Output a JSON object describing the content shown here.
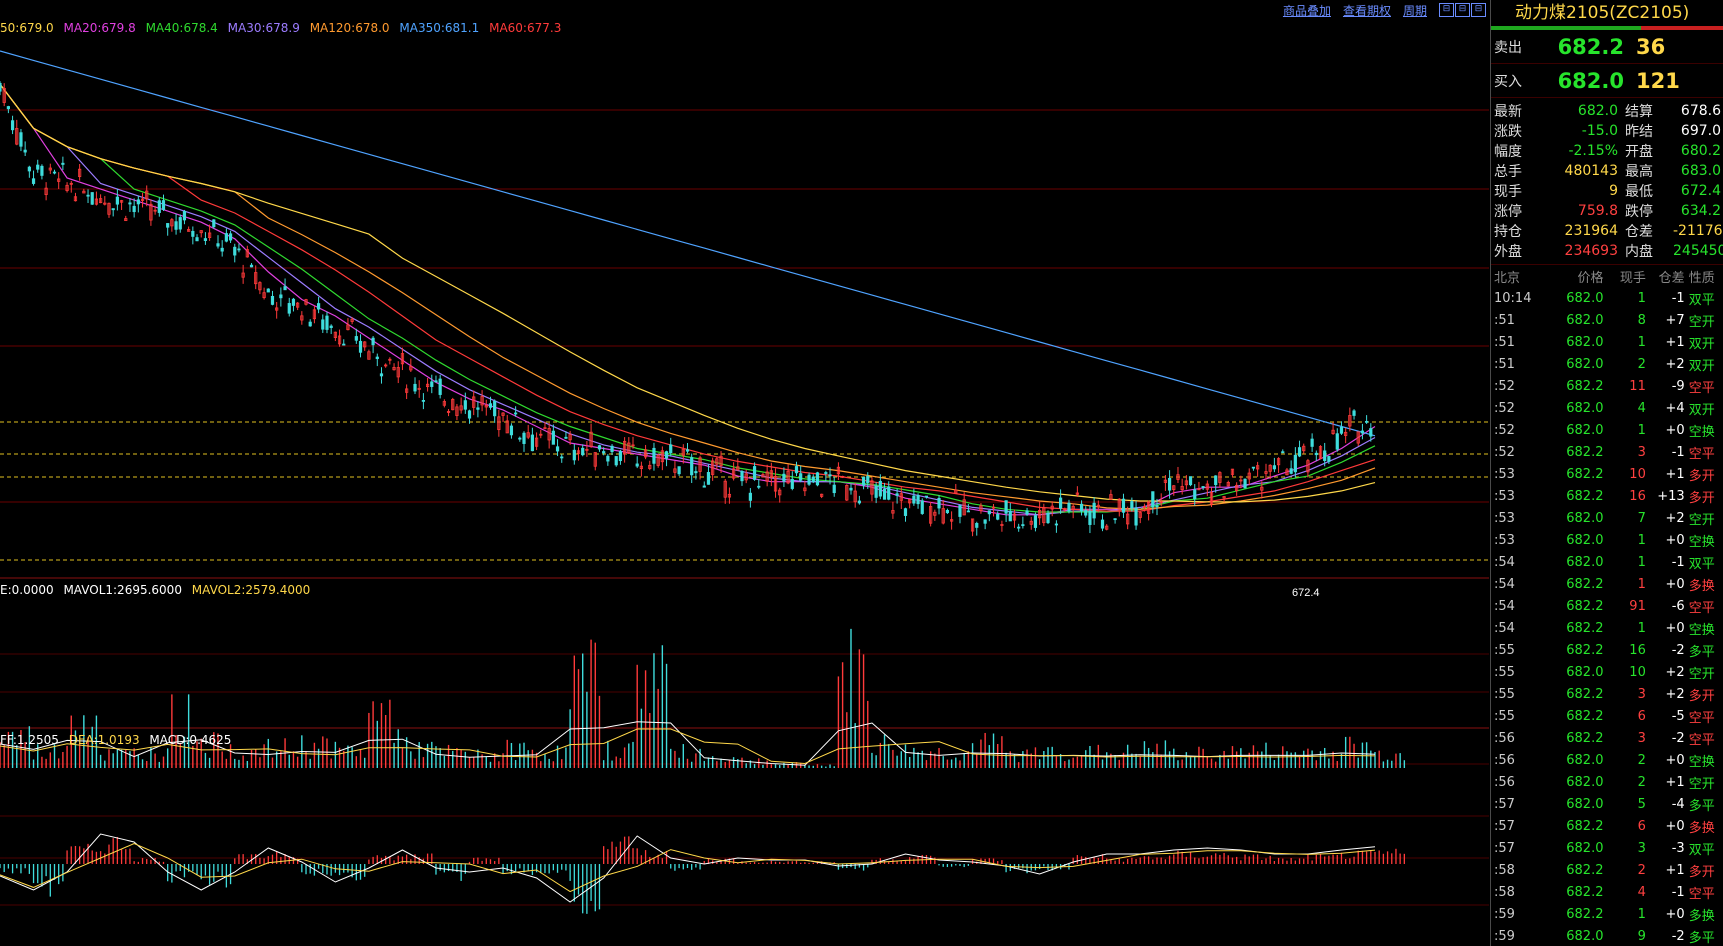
{
  "toolbar": {
    "links": [
      "商品叠加",
      "查看期权",
      "周期"
    ],
    "window_buttons": [
      "⊟",
      "⊟",
      "⊟"
    ]
  },
  "ma_legend": [
    {
      "text": "50:679.0",
      "color": "#ffd84a"
    },
    {
      "text": "MA20:679.8",
      "color": "#e040e0"
    },
    {
      "text": "MA40:678.4",
      "color": "#2fd92f"
    },
    {
      "text": "MA30:678.9",
      "color": "#9c7cff"
    },
    {
      "text": "MA120:678.0",
      "color": "#ff9a2f"
    },
    {
      "text": "MA350:681.1",
      "color": "#4fa3ff"
    },
    {
      "text": "MA60:677.3",
      "color": "#ff3a3a"
    }
  ],
  "vol_legend": [
    {
      "text": "E:0.0000",
      "color": "#ffffff"
    },
    {
      "text": "MAVOL1:2695.6000",
      "color": "#ffffff"
    },
    {
      "text": "MAVOL2:2579.4000",
      "color": "#ffd84a"
    }
  ],
  "macd_legend": [
    {
      "text": "FF:1.2505",
      "color": "#ffffff"
    },
    {
      "text": "DEA:1.0193",
      "color": "#ffd84a"
    },
    {
      "text": "MACD:0.4625",
      "color": "#ffffff"
    }
  ],
  "chart_data": {
    "type": "candlestick",
    "low_marker": "672.4",
    "price_close": [
      712,
      704,
      703,
      702,
      701,
      700,
      699,
      697,
      693,
      692,
      690,
      688,
      686,
      684,
      683,
      682,
      680,
      679,
      679,
      678,
      678,
      677,
      676,
      676,
      676,
      676,
      675,
      674,
      674,
      673,
      673,
      673,
      674,
      673,
      674,
      676,
      675,
      676,
      677,
      678,
      680,
      682
    ],
    "volume": [
      40,
      22,
      70,
      18,
      20,
      64,
      30,
      20,
      25,
      30,
      22,
      70,
      26,
      20,
      16,
      24,
      20,
      110,
      24,
      130,
      20,
      14,
      10,
      5,
      4,
      120,
      30,
      22,
      20,
      30,
      18,
      22,
      20,
      20,
      24,
      18,
      20,
      22,
      20,
      22,
      28,
      18
    ],
    "macd": [
      -0.3,
      -1.0,
      0.6,
      0.9,
      0.2,
      -0.6,
      -0.7,
      0.3,
      0.5,
      -0.4,
      -0.5,
      0.3,
      0.4,
      -0.6,
      0.2,
      -0.4,
      -0.3,
      -1.6,
      0.9,
      0.5,
      -0.2,
      0.2,
      0.1,
      0.1,
      0.1,
      -0.2,
      0.2,
      0.3,
      -0.1,
      0.2,
      -0.3,
      -0.2,
      0.3,
      0.2,
      0.3,
      0.4,
      0.4,
      0.3,
      0.2,
      0.3,
      0.4,
      0.46
    ]
  },
  "panel": {
    "title": "动力煤2105(ZC2105)",
    "ask": {
      "label": "卖出",
      "price": "682.2",
      "volume": "36"
    },
    "bid": {
      "label": "买入",
      "price": "682.0",
      "volume": "121"
    },
    "stats": [
      {
        "k": "最新",
        "v": "682.0",
        "vc": "dn",
        "k2": "结算",
        "v2": "678.6",
        "v2c": "wh"
      },
      {
        "k": "涨跌",
        "v": "-15.0",
        "vc": "dn",
        "k2": "昨结",
        "v2": "697.0",
        "v2c": "wh"
      },
      {
        "k": "幅度",
        "v": "-2.15%",
        "vc": "dn",
        "k2": "开盘",
        "v2": "680.2",
        "v2c": "dn"
      },
      {
        "k": "总手",
        "v": "480143",
        "vc": "yl",
        "k2": "最高",
        "v2": "683.0",
        "v2c": "dn"
      },
      {
        "k": "现手",
        "v": "9",
        "vc": "yl",
        "k2": "最低",
        "v2": "672.4",
        "v2c": "dn"
      },
      {
        "k": "涨停",
        "v": "759.8",
        "vc": "up",
        "k2": "跌停",
        "v2": "634.2",
        "v2c": "dn"
      },
      {
        "k": "持仓",
        "v": "231964",
        "vc": "yl",
        "k2": "仓差",
        "v2": "-21176",
        "v2c": "yl"
      },
      {
        "k": "外盘",
        "v": "234693",
        "vc": "up",
        "k2": "内盘",
        "v2": "245450",
        "v2c": "dn"
      }
    ],
    "tick_header": [
      "北京",
      "价格",
      "现手",
      "仓差",
      "性质"
    ],
    "ticks": [
      {
        "t": "10:14",
        "p": "682.0",
        "pc": "dn",
        "v": "1",
        "vc": "dn",
        "o": "-1",
        "n": "双平",
        "nc": "dn"
      },
      {
        "t": ":51",
        "p": "682.0",
        "pc": "dn",
        "v": "8",
        "vc": "dn",
        "o": "+7",
        "n": "空开",
        "nc": "dn"
      },
      {
        "t": ":51",
        "p": "682.0",
        "pc": "dn",
        "v": "1",
        "vc": "dn",
        "o": "+1",
        "n": "双开",
        "nc": "dn"
      },
      {
        "t": ":51",
        "p": "682.0",
        "pc": "dn",
        "v": "2",
        "vc": "dn",
        "o": "+2",
        "n": "双开",
        "nc": "dn"
      },
      {
        "t": ":52",
        "p": "682.2",
        "pc": "dn",
        "v": "11",
        "vc": "up",
        "o": "-9",
        "n": "空平",
        "nc": "up"
      },
      {
        "t": ":52",
        "p": "682.0",
        "pc": "dn",
        "v": "4",
        "vc": "dn",
        "o": "+4",
        "n": "双开",
        "nc": "dn"
      },
      {
        "t": ":52",
        "p": "682.0",
        "pc": "dn",
        "v": "1",
        "vc": "dn",
        "o": "+0",
        "n": "空换",
        "nc": "dn"
      },
      {
        "t": ":52",
        "p": "682.2",
        "pc": "dn",
        "v": "3",
        "vc": "up",
        "o": "-1",
        "n": "空平",
        "nc": "up"
      },
      {
        "t": ":53",
        "p": "682.2",
        "pc": "dn",
        "v": "10",
        "vc": "up",
        "o": "+1",
        "n": "多开",
        "nc": "up"
      },
      {
        "t": ":53",
        "p": "682.2",
        "pc": "dn",
        "v": "16",
        "vc": "up",
        "o": "+13",
        "n": "多开",
        "nc": "up"
      },
      {
        "t": ":53",
        "p": "682.0",
        "pc": "dn",
        "v": "7",
        "vc": "dn",
        "o": "+2",
        "n": "空开",
        "nc": "dn"
      },
      {
        "t": ":53",
        "p": "682.0",
        "pc": "dn",
        "v": "1",
        "vc": "dn",
        "o": "+0",
        "n": "空换",
        "nc": "dn"
      },
      {
        "t": ":54",
        "p": "682.0",
        "pc": "dn",
        "v": "1",
        "vc": "dn",
        "o": "-1",
        "n": "双平",
        "nc": "dn"
      },
      {
        "t": ":54",
        "p": "682.2",
        "pc": "dn",
        "v": "1",
        "vc": "up",
        "o": "+0",
        "n": "多换",
        "nc": "up"
      },
      {
        "t": ":54",
        "p": "682.2",
        "pc": "dn",
        "v": "91",
        "vc": "up",
        "o": "-6",
        "n": "空平",
        "nc": "up"
      },
      {
        "t": ":54",
        "p": "682.2",
        "pc": "dn",
        "v": "1",
        "vc": "dn",
        "o": "+0",
        "n": "空换",
        "nc": "dn"
      },
      {
        "t": ":55",
        "p": "682.2",
        "pc": "dn",
        "v": "16",
        "vc": "dn",
        "o": "-2",
        "n": "多平",
        "nc": "dn"
      },
      {
        "t": ":55",
        "p": "682.0",
        "pc": "dn",
        "v": "10",
        "vc": "dn",
        "o": "+2",
        "n": "空开",
        "nc": "dn"
      },
      {
        "t": ":55",
        "p": "682.2",
        "pc": "dn",
        "v": "3",
        "vc": "up",
        "o": "+2",
        "n": "多开",
        "nc": "up"
      },
      {
        "t": ":55",
        "p": "682.2",
        "pc": "dn",
        "v": "6",
        "vc": "up",
        "o": "-5",
        "n": "空平",
        "nc": "up"
      },
      {
        "t": ":56",
        "p": "682.2",
        "pc": "dn",
        "v": "3",
        "vc": "up",
        "o": "-2",
        "n": "空平",
        "nc": "up"
      },
      {
        "t": ":56",
        "p": "682.0",
        "pc": "dn",
        "v": "2",
        "vc": "dn",
        "o": "+0",
        "n": "空换",
        "nc": "dn"
      },
      {
        "t": ":56",
        "p": "682.0",
        "pc": "dn",
        "v": "2",
        "vc": "dn",
        "o": "+1",
        "n": "空开",
        "nc": "dn"
      },
      {
        "t": ":57",
        "p": "682.0",
        "pc": "dn",
        "v": "5",
        "vc": "dn",
        "o": "-4",
        "n": "多平",
        "nc": "dn"
      },
      {
        "t": ":57",
        "p": "682.2",
        "pc": "dn",
        "v": "6",
        "vc": "up",
        "o": "+0",
        "n": "多换",
        "nc": "up"
      },
      {
        "t": ":57",
        "p": "682.0",
        "pc": "dn",
        "v": "3",
        "vc": "dn",
        "o": "-3",
        "n": "双平",
        "nc": "dn"
      },
      {
        "t": ":58",
        "p": "682.2",
        "pc": "dn",
        "v": "2",
        "vc": "up",
        "o": "+1",
        "n": "多开",
        "nc": "up"
      },
      {
        "t": ":58",
        "p": "682.2",
        "pc": "dn",
        "v": "4",
        "vc": "up",
        "o": "-1",
        "n": "空平",
        "nc": "up"
      },
      {
        "t": ":59",
        "p": "682.2",
        "pc": "dn",
        "v": "1",
        "vc": "dn",
        "o": "+0",
        "n": "多换",
        "nc": "dn"
      },
      {
        "t": ":59",
        "p": "682.0",
        "pc": "dn",
        "v": "9",
        "vc": "dn",
        "o": "-2",
        "n": "多平",
        "nc": "dn"
      }
    ]
  }
}
